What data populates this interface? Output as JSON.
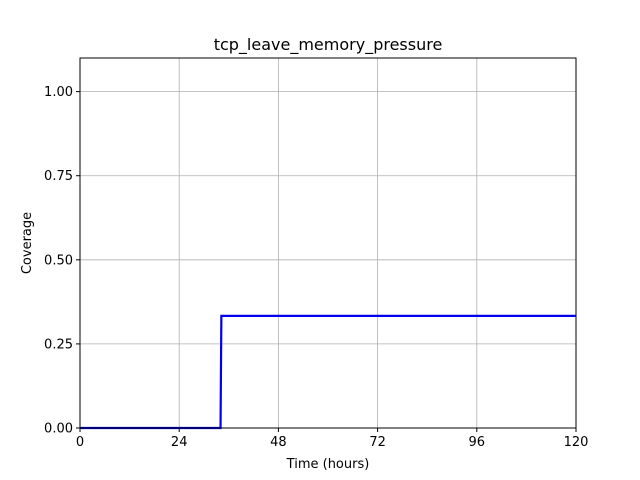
{
  "chart_data": {
    "type": "line",
    "title": "tcp_leave_memory_pressure",
    "xlabel": "Time (hours)",
    "ylabel": "Coverage",
    "xlim": [
      0,
      120
    ],
    "ylim": [
      0,
      1.1
    ],
    "xticks": [
      0,
      24,
      48,
      72,
      96,
      120
    ],
    "xtick_labels": [
      "0",
      "24",
      "48",
      "72",
      "96",
      "120"
    ],
    "yticks": [
      0,
      0.25,
      0.5,
      0.75,
      1.0
    ],
    "ytick_labels": [
      "0.00",
      "0.25",
      "0.50",
      "0.75",
      "1.00"
    ],
    "grid": true,
    "series": [
      {
        "color": "#0000ee",
        "step": true,
        "x": [
          0,
          34,
          34.2,
          120
        ],
        "y": [
          0,
          0,
          0.3333,
          0.3333
        ]
      }
    ]
  }
}
